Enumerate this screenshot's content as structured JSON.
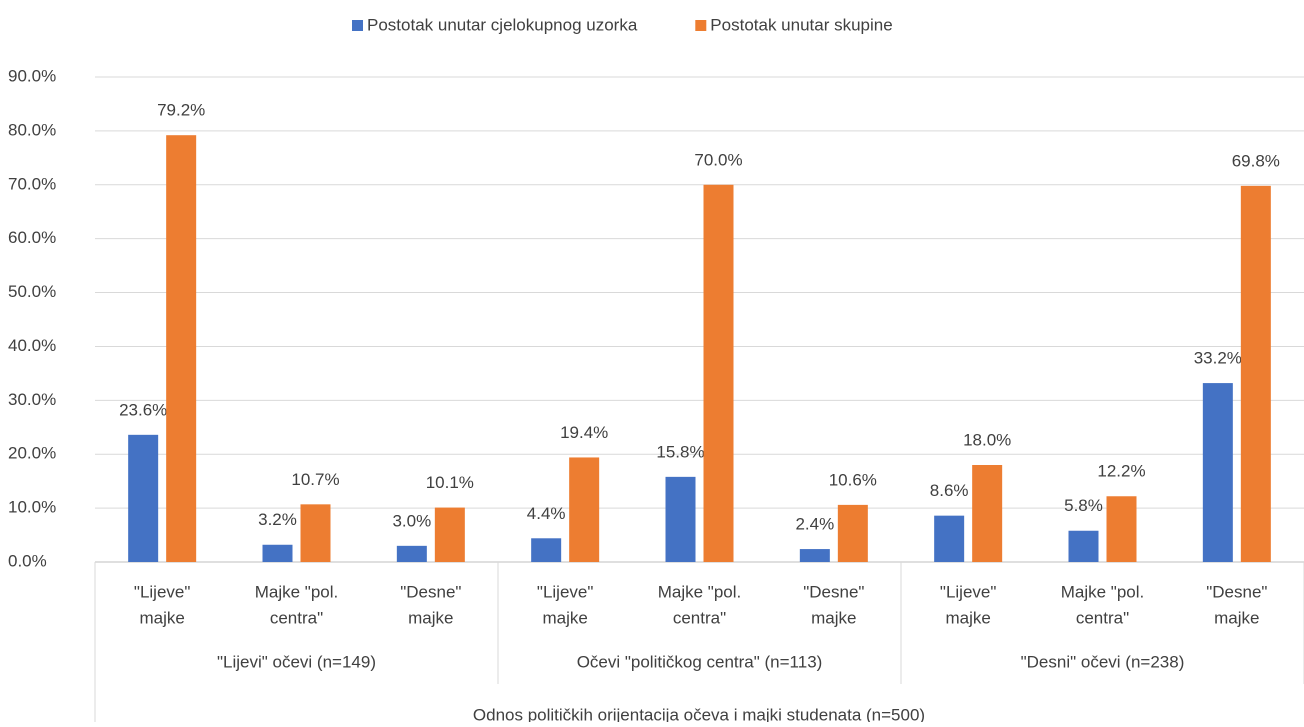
{
  "chart_data": {
    "type": "bar",
    "categories": [
      [
        "\"Lijeve\"",
        "majke"
      ],
      [
        "Majke \"pol.",
        "centra\""
      ],
      [
        "\"Desne\"",
        "majke"
      ],
      [
        "\"Lijeve\"",
        "majke"
      ],
      [
        "Majke \"pol.",
        "centra\""
      ],
      [
        "\"Desne\"",
        "majke"
      ],
      [
        "\"Lijeve\"",
        "majke"
      ],
      [
        "Majke \"pol.",
        "centra\""
      ],
      [
        "\"Desne\"",
        "majke"
      ]
    ],
    "x_groups": [
      "\"Lijevi\" očevi (n=149)",
      "Očevi \"političkog centra\" (n=113)",
      "\"Desni\" očevi (n=238)"
    ],
    "xlabel": "Odnos političkih orijentacija očeva i majki studenata (n=500)",
    "series": [
      {
        "name": "Postotak unutar cjelokupnog uzorka",
        "color": "#4472c4",
        "values": [
          23.6,
          3.2,
          3.0,
          4.4,
          15.8,
          2.4,
          8.6,
          5.8,
          33.2
        ],
        "value_labels": [
          "23.6%",
          "3.2%",
          "3.0%",
          "4.4%",
          "15.8%",
          "2.4%",
          "8.6%",
          "5.8%",
          "33.2%"
        ]
      },
      {
        "name": "Postotak unutar skupine",
        "color": "#ed7d31",
        "values": [
          79.2,
          10.7,
          10.1,
          19.4,
          70.0,
          10.6,
          18.0,
          12.2,
          69.8
        ],
        "value_labels": [
          "79.2%",
          "10.7%",
          "10.1%",
          "19.4%",
          "70.0%",
          "10.6%",
          "18.0%",
          "12.2%",
          "69.8%"
        ]
      }
    ],
    "ylim": [
      0,
      90
    ],
    "yticks": [
      {
        "value": 0,
        "label": "0.0%"
      },
      {
        "value": 10,
        "label": "10.0%"
      },
      {
        "value": 20,
        "label": "20.0%"
      },
      {
        "value": 30,
        "label": "30.0%"
      },
      {
        "value": 40,
        "label": "40.0%"
      },
      {
        "value": 50,
        "label": "50.0%"
      },
      {
        "value": 60,
        "label": "60.0%"
      },
      {
        "value": 70,
        "label": "70.0%"
      },
      {
        "value": 80,
        "label": "80.0%"
      },
      {
        "value": 90,
        "label": "90.0%"
      }
    ],
    "grid": true,
    "legend": "top"
  }
}
